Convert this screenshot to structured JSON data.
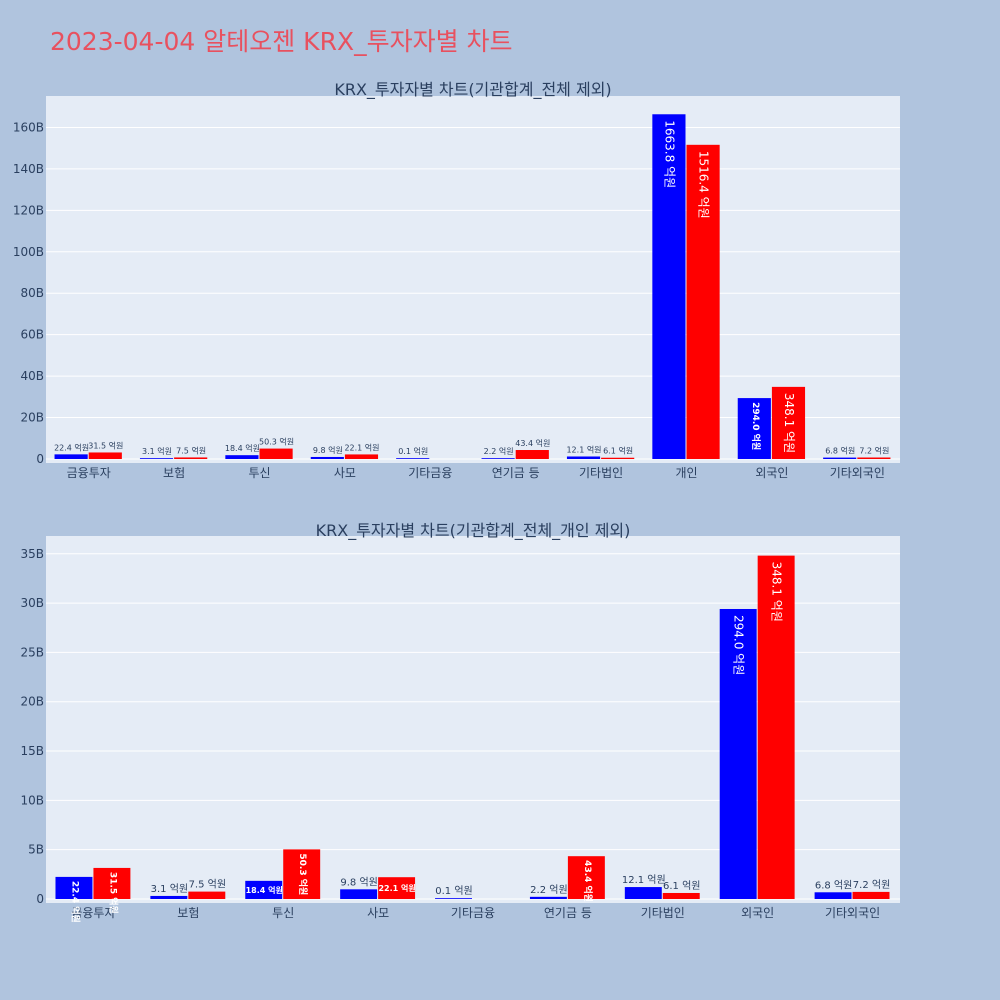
{
  "page": {
    "title": "2023-04-04 알테오젠 KRX_투자자별 차트"
  },
  "colors": {
    "buy": "#0000ff",
    "sell": "#ff0000",
    "plot_bg": "#e5ecf6",
    "page_bg": "#b0c4de",
    "title": "#e8515f",
    "axis_text": "#2a3f5f"
  },
  "chart_data": [
    {
      "type": "bar",
      "title": "KRX_투자자별 차트(기관합계_전체 제외)",
      "categories": [
        "금융투자",
        "보험",
        "투신",
        "사모",
        "기타금융",
        "연기금 등",
        "기타법인",
        "개인",
        "외국인",
        "기타외국인"
      ],
      "series": [
        {
          "color": "#0000ff",
          "values": [
            2.24,
            0.31,
            1.84,
            0.98,
            0.01,
            0.22,
            1.21,
            166.38,
            29.4,
            0.68
          ],
          "labels": [
            "22.4 억원",
            "3.1 억원",
            "18.4 억원",
            "9.8 억원",
            "0.1 억원",
            "2.2 억원",
            "12.1 억원",
            "1663.8 억원",
            "294.0 억원",
            "6.8 억원"
          ]
        },
        {
          "color": "#ff0000",
          "values": [
            3.15,
            0.75,
            5.03,
            2.21,
            null,
            4.34,
            0.61,
            151.64,
            34.81,
            0.72
          ],
          "labels": [
            "31.5 억원",
            "7.5 억원",
            "50.3 억원",
            "22.1 억원",
            "",
            "43.4 억원",
            "6.1 억원",
            "1516.4 억원",
            "348.1 억원",
            "7.2 억원"
          ]
        }
      ],
      "y_unit": "B",
      "yticks": [
        0,
        20,
        40,
        60,
        80,
        100,
        120,
        140,
        160
      ],
      "ytick_labels": [
        "0",
        "20B",
        "40B",
        "60B",
        "80B",
        "100B",
        "120B",
        "140B",
        "160B"
      ],
      "ylim": [
        0,
        175.2
      ],
      "grid": true
    },
    {
      "type": "bar",
      "title": "KRX_투자자별 차트(기관합계_전체_개인 제외)",
      "categories": [
        "금융투자",
        "보험",
        "투신",
        "사모",
        "기타금융",
        "연기금 등",
        "기타법인",
        "외국인",
        "기타외국인"
      ],
      "series": [
        {
          "color": "#0000ff",
          "values": [
            2.24,
            0.31,
            1.84,
            0.98,
            0.01,
            0.22,
            1.21,
            29.4,
            0.68
          ],
          "labels": [
            "22.4 억원",
            "3.1 억원",
            "18.4 억원",
            "9.8 억원",
            "0.1 억원",
            "2.2 억원",
            "12.1 억원",
            "294.0 억원",
            "6.8 억원"
          ]
        },
        {
          "color": "#ff0000",
          "values": [
            3.15,
            0.75,
            5.03,
            2.21,
            null,
            4.34,
            0.61,
            34.81,
            0.72
          ],
          "labels": [
            "31.5 억원",
            "7.5 억원",
            "50.3 억원",
            "22.1 억원",
            "",
            "43.4 억원",
            "6.1 억원",
            "348.1 억원",
            "7.2 억원"
          ]
        }
      ],
      "y_unit": "B",
      "yticks": [
        0,
        5,
        10,
        15,
        20,
        25,
        30,
        35
      ],
      "ytick_labels": [
        "0",
        "5B",
        "10B",
        "15B",
        "20B",
        "25B",
        "30B",
        "35B"
      ],
      "ylim": [
        0,
        36.8
      ],
      "grid": true
    }
  ]
}
